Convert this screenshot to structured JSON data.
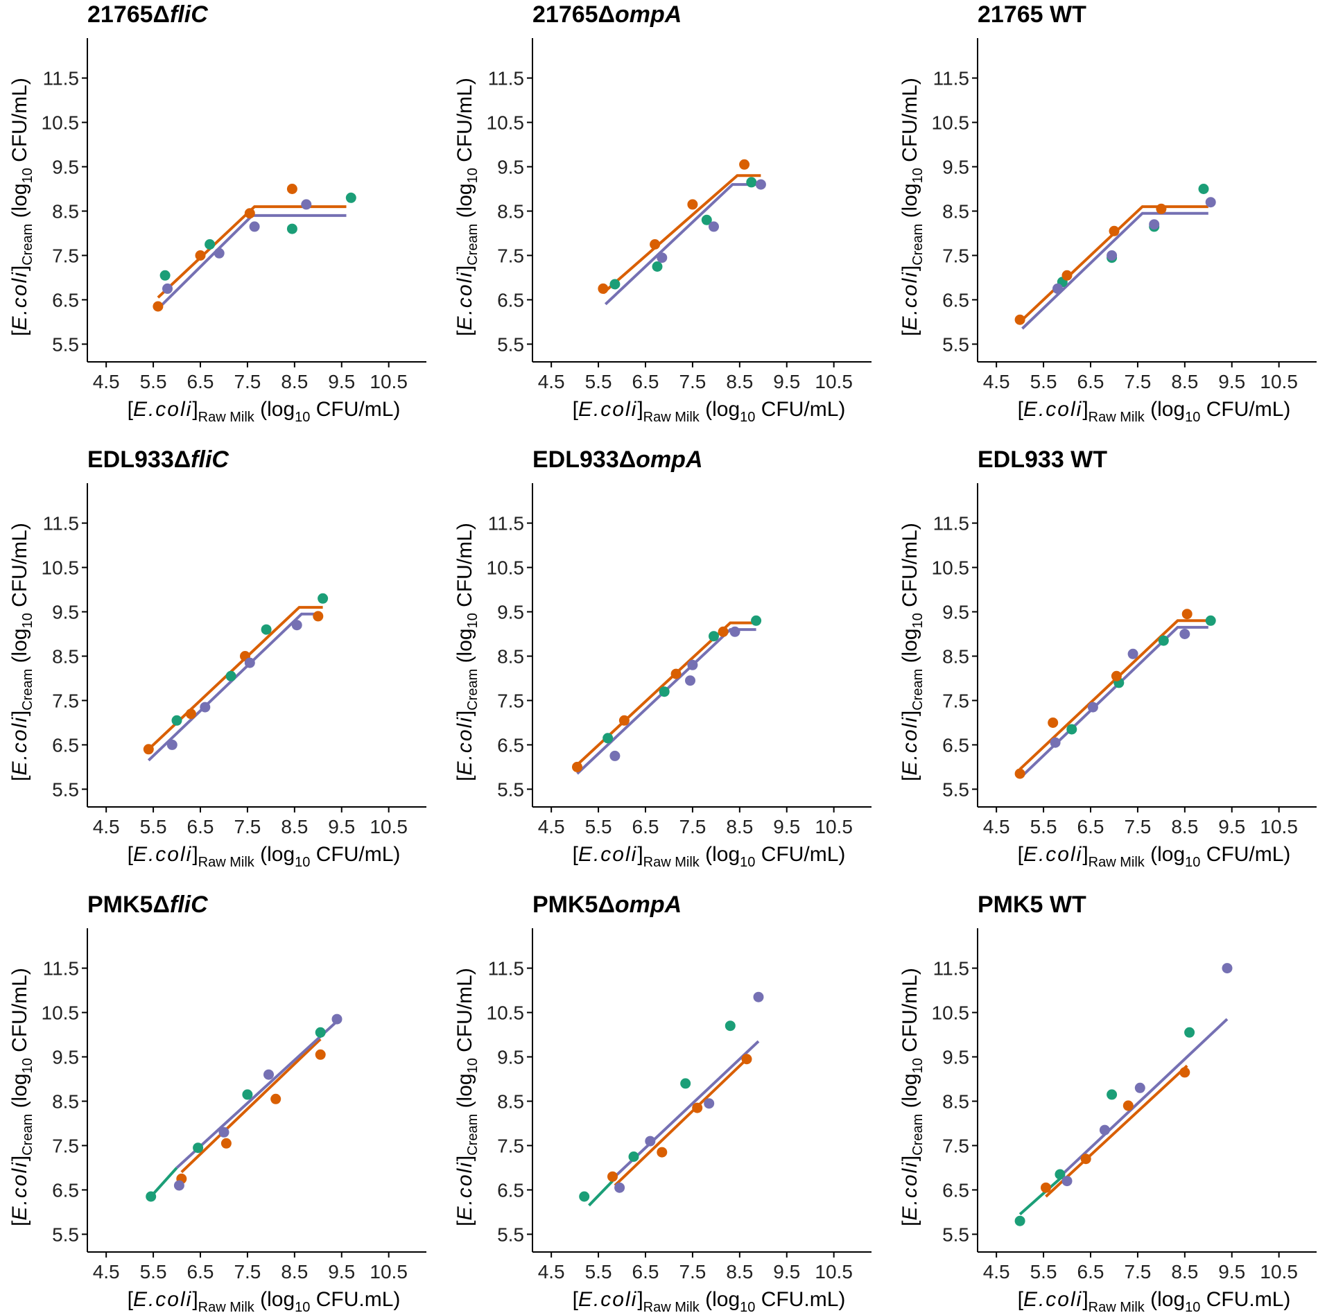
{
  "colors": {
    "green": "#1b9e77",
    "orange": "#d95f02",
    "purple": "#7570b3",
    "axis": "#000000"
  },
  "axes": {
    "ylabel": {
      "prefix": "[",
      "species": "E.coli",
      "mid": "]",
      "subscript": "Cream",
      "unit_pre": " (log",
      "unit_sub": "10",
      "unit_post": " CFU/mL)"
    },
    "xlabel_mL": {
      "prefix": "[",
      "species": "E.coli",
      "mid": "]",
      "subscript": "Raw Milk",
      "unit_pre": " (log",
      "unit_sub": "10",
      "unit_post": " CFU/mL)"
    },
    "xlabel_dot": {
      "prefix": "[",
      "species": "E.coli",
      "mid": "]",
      "subscript": "Raw Milk",
      "unit_pre": " (log",
      "unit_sub": "10",
      "unit_post": " CFU.mL)"
    },
    "xticks": [
      4.5,
      5.5,
      6.5,
      7.5,
      8.5,
      9.5,
      10.5
    ],
    "yticks": [
      5.5,
      6.5,
      7.5,
      8.5,
      9.5,
      10.5,
      11.5
    ],
    "xlim": [
      4.1,
      11.3
    ],
    "ylim": [
      5.1,
      12.4
    ]
  },
  "chart_data": [
    {
      "type": "scatter",
      "title_plain": "21765Δ",
      "title_italic": "fliC",
      "xlabel_key": "xlabel_mL",
      "points": {
        "green": [
          [
            5.75,
            7.05
          ],
          [
            6.7,
            7.75
          ],
          [
            8.45,
            8.1
          ],
          [
            9.7,
            8.8
          ]
        ],
        "orange": [
          [
            5.6,
            6.35
          ],
          [
            6.5,
            7.5
          ],
          [
            7.55,
            8.45
          ],
          [
            8.45,
            9.0
          ]
        ],
        "purple": [
          [
            5.8,
            6.75
          ],
          [
            6.9,
            7.55
          ],
          [
            7.65,
            8.15
          ],
          [
            8.75,
            8.65
          ]
        ]
      },
      "lines": {
        "orange": [
          [
            5.6,
            6.55
          ],
          [
            7.65,
            8.6
          ],
          [
            9.6,
            8.6
          ]
        ],
        "purple": [
          [
            5.65,
            6.35
          ],
          [
            7.6,
            8.4
          ],
          [
            9.6,
            8.4
          ]
        ]
      }
    },
    {
      "type": "scatter",
      "title_plain": "21765Δ",
      "title_italic": "ompA",
      "xlabel_key": "xlabel_mL",
      "points": {
        "green": [
          [
            5.85,
            6.85
          ],
          [
            6.75,
            7.25
          ],
          [
            7.8,
            8.3
          ],
          [
            8.75,
            9.15
          ]
        ],
        "orange": [
          [
            5.6,
            6.75
          ],
          [
            6.7,
            7.75
          ],
          [
            7.5,
            8.65
          ],
          [
            8.6,
            9.55
          ]
        ],
        "purple": [
          [
            6.85,
            7.45
          ],
          [
            7.95,
            8.15
          ],
          [
            8.95,
            9.1
          ]
        ]
      },
      "lines": {
        "orange": [
          [
            5.6,
            6.65
          ],
          [
            8.45,
            9.3
          ],
          [
            8.95,
            9.3
          ]
        ],
        "purple": [
          [
            5.65,
            6.4
          ],
          [
            8.35,
            9.1
          ],
          [
            8.95,
            9.1
          ]
        ]
      }
    },
    {
      "type": "scatter",
      "title_plain": "21765 WT",
      "title_italic": "",
      "xlabel_key": "xlabel_mL",
      "points": {
        "green": [
          [
            5.9,
            6.9
          ],
          [
            6.95,
            7.45
          ],
          [
            7.85,
            8.15
          ],
          [
            8.9,
            9.0
          ]
        ],
        "orange": [
          [
            5.0,
            6.05
          ],
          [
            6.0,
            7.05
          ],
          [
            7.0,
            8.05
          ],
          [
            8.0,
            8.55
          ]
        ],
        "purple": [
          [
            5.8,
            6.75
          ],
          [
            6.95,
            7.5
          ],
          [
            7.85,
            8.2
          ],
          [
            9.05,
            8.7
          ]
        ]
      },
      "lines": {
        "orange": [
          [
            5.0,
            6.0
          ],
          [
            7.6,
            8.6
          ],
          [
            9.0,
            8.6
          ]
        ],
        "purple": [
          [
            5.05,
            5.85
          ],
          [
            7.6,
            8.45
          ],
          [
            9.0,
            8.45
          ]
        ]
      }
    },
    {
      "type": "scatter",
      "title_plain": "EDL933Δ",
      "title_italic": "fliC",
      "xlabel_key": "xlabel_mL",
      "points": {
        "green": [
          [
            6.0,
            7.05
          ],
          [
            7.15,
            8.05
          ],
          [
            7.9,
            9.1
          ],
          [
            9.1,
            9.8
          ]
        ],
        "orange": [
          [
            5.4,
            6.4
          ],
          [
            6.3,
            7.2
          ],
          [
            7.45,
            8.5
          ],
          [
            9.0,
            9.4
          ]
        ],
        "purple": [
          [
            5.9,
            6.5
          ],
          [
            6.6,
            7.35
          ],
          [
            7.55,
            8.35
          ],
          [
            8.55,
            9.2
          ]
        ]
      },
      "lines": {
        "orange": [
          [
            5.4,
            6.4
          ],
          [
            8.6,
            9.6
          ],
          [
            9.1,
            9.6
          ]
        ],
        "purple": [
          [
            5.4,
            6.15
          ],
          [
            8.65,
            9.45
          ],
          [
            9.05,
            9.45
          ]
        ]
      }
    },
    {
      "type": "scatter",
      "title_plain": "EDL933Δ",
      "title_italic": "ompA",
      "xlabel_key": "xlabel_mL",
      "points": {
        "green": [
          [
            5.7,
            6.65
          ],
          [
            6.9,
            7.7
          ],
          [
            7.95,
            8.95
          ],
          [
            8.85,
            9.3
          ]
        ],
        "orange": [
          [
            5.05,
            6.0
          ],
          [
            6.05,
            7.05
          ],
          [
            7.15,
            8.1
          ],
          [
            8.15,
            9.05
          ]
        ],
        "purple": [
          [
            5.85,
            6.25
          ],
          [
            7.45,
            7.95
          ],
          [
            7.5,
            8.3
          ],
          [
            8.4,
            9.05
          ]
        ]
      },
      "lines": {
        "orange": [
          [
            5.0,
            6.0
          ],
          [
            8.3,
            9.25
          ],
          [
            8.85,
            9.25
          ]
        ],
        "purple": [
          [
            5.05,
            5.85
          ],
          [
            8.3,
            9.1
          ],
          [
            8.85,
            9.1
          ]
        ]
      }
    },
    {
      "type": "scatter",
      "title_plain": "EDL933 WT",
      "title_italic": "",
      "xlabel_key": "xlabel_mL",
      "points": {
        "green": [
          [
            6.1,
            6.85
          ],
          [
            7.1,
            7.9
          ],
          [
            8.05,
            8.85
          ],
          [
            9.05,
            9.3
          ]
        ],
        "orange": [
          [
            5.0,
            5.85
          ],
          [
            5.7,
            7.0
          ],
          [
            7.05,
            8.05
          ],
          [
            8.55,
            9.45
          ]
        ],
        "purple": [
          [
            5.75,
            6.55
          ],
          [
            6.55,
            7.35
          ],
          [
            7.4,
            8.55
          ],
          [
            8.5,
            9.0
          ]
        ]
      },
      "lines": {
        "orange": [
          [
            5.0,
            5.95
          ],
          [
            8.35,
            9.3
          ],
          [
            9.0,
            9.3
          ]
        ],
        "purple": [
          [
            5.05,
            5.8
          ],
          [
            8.35,
            9.15
          ],
          [
            9.0,
            9.15
          ]
        ]
      }
    },
    {
      "type": "scatter",
      "title_plain": "PMK5Δ",
      "title_italic": "fliC",
      "xlabel_key": "xlabel_dot",
      "points": {
        "green": [
          [
            5.45,
            6.35
          ],
          [
            6.45,
            7.45
          ],
          [
            7.5,
            8.65
          ],
          [
            9.05,
            10.05
          ]
        ],
        "orange": [
          [
            6.1,
            6.75
          ],
          [
            7.05,
            7.55
          ],
          [
            8.1,
            8.55
          ],
          [
            9.05,
            9.55
          ]
        ],
        "purple": [
          [
            6.05,
            6.6
          ],
          [
            7.0,
            7.8
          ],
          [
            7.95,
            9.1
          ],
          [
            9.4,
            10.35
          ]
        ]
      },
      "lines": {
        "green": [
          [
            5.45,
            6.35
          ],
          [
            6.0,
            7.0
          ]
        ],
        "orange": [
          [
            6.1,
            6.9
          ],
          [
            9.05,
            9.9
          ]
        ],
        "purple": [
          [
            6.0,
            7.0
          ],
          [
            9.4,
            10.3
          ]
        ]
      }
    },
    {
      "type": "scatter",
      "title_plain": "PMK5Δ",
      "title_italic": "ompA",
      "xlabel_key": "xlabel_dot",
      "points": {
        "green": [
          [
            5.2,
            6.35
          ],
          [
            6.25,
            7.25
          ],
          [
            7.35,
            8.9
          ],
          [
            8.3,
            10.2
          ]
        ],
        "orange": [
          [
            5.8,
            6.8
          ],
          [
            6.85,
            7.35
          ],
          [
            7.6,
            8.35
          ],
          [
            8.65,
            9.45
          ]
        ],
        "purple": [
          [
            5.95,
            6.55
          ],
          [
            6.6,
            7.6
          ],
          [
            7.85,
            8.45
          ],
          [
            8.9,
            10.85
          ]
        ]
      },
      "lines": {
        "green": [
          [
            5.3,
            6.15
          ],
          [
            5.8,
            6.7
          ]
        ],
        "orange": [
          [
            5.85,
            6.6
          ],
          [
            8.7,
            9.5
          ]
        ],
        "purple": [
          [
            5.8,
            6.75
          ],
          [
            8.9,
            9.85
          ]
        ]
      }
    },
    {
      "type": "scatter",
      "title_plain": "PMK5 WT",
      "title_italic": "",
      "xlabel_key": "xlabel_dot",
      "points": {
        "green": [
          [
            5.0,
            5.8
          ],
          [
            5.85,
            6.85
          ],
          [
            6.95,
            8.65
          ],
          [
            8.6,
            10.05
          ]
        ],
        "orange": [
          [
            5.55,
            6.55
          ],
          [
            6.4,
            7.2
          ],
          [
            7.3,
            8.4
          ],
          [
            8.5,
            9.15
          ]
        ],
        "purple": [
          [
            6.0,
            6.7
          ],
          [
            6.8,
            7.85
          ],
          [
            7.55,
            8.8
          ],
          [
            9.4,
            11.5
          ]
        ]
      },
      "lines": {
        "green": [
          [
            5.0,
            5.95
          ],
          [
            5.9,
            6.8
          ]
        ],
        "orange": [
          [
            5.55,
            6.35
          ],
          [
            8.55,
            9.3
          ]
        ],
        "purple": [
          [
            5.85,
            6.8
          ],
          [
            9.4,
            10.35
          ]
        ]
      }
    }
  ]
}
